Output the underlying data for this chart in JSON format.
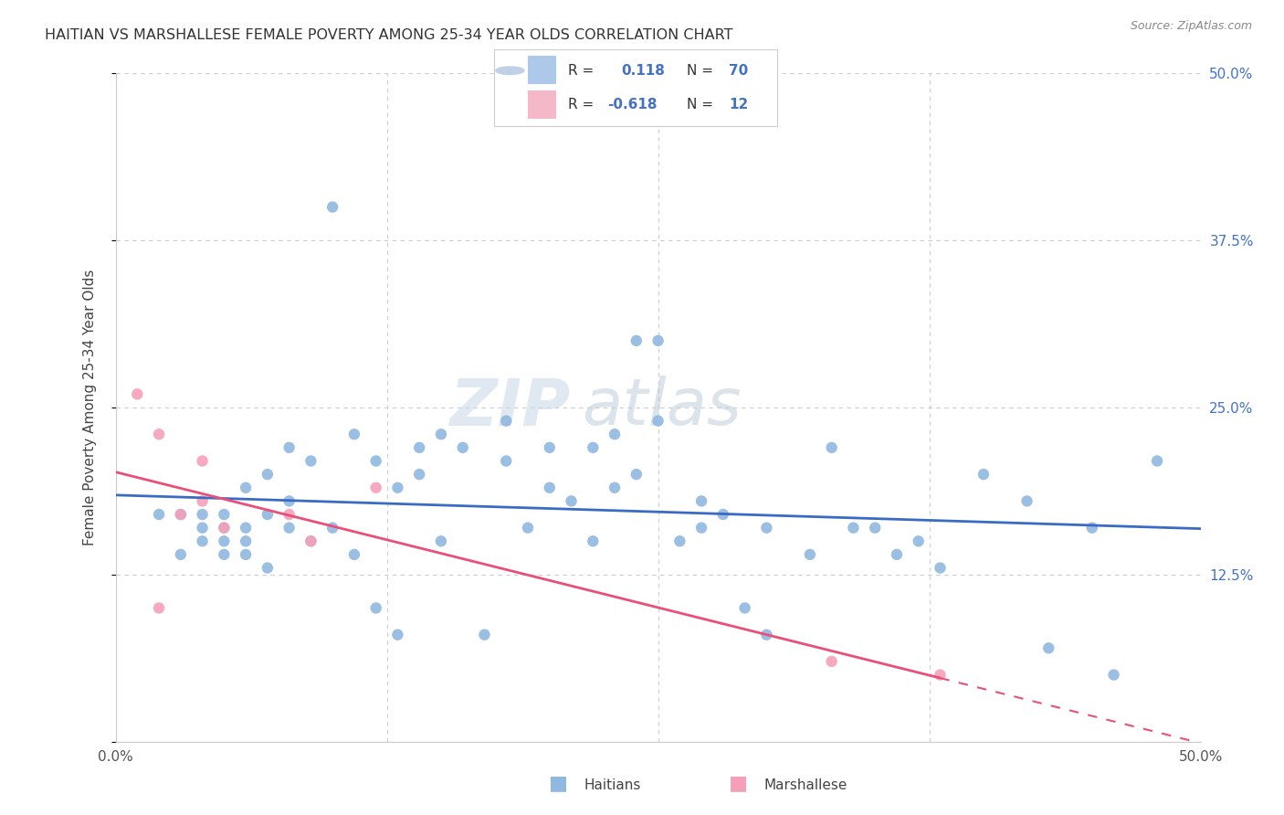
{
  "title": "HAITIAN VS MARSHALLESE FEMALE POVERTY AMONG 25-34 YEAR OLDS CORRELATION CHART",
  "source": "Source: ZipAtlas.com",
  "ylabel": "Female Poverty Among 25-34 Year Olds",
  "xlim": [
    0.0,
    0.5
  ],
  "ylim": [
    0.0,
    0.5
  ],
  "xticks": [
    0.0,
    0.125,
    0.25,
    0.375,
    0.5
  ],
  "yticks": [
    0.0,
    0.125,
    0.25,
    0.375,
    0.5
  ],
  "watermark_zip": "ZIP",
  "watermark_atlas": "atlas",
  "haitian_color": "#90b8e0",
  "marshallese_color": "#f5a0b8",
  "haitian_line_color": "#3a6bc4",
  "marshallese_line_color": "#e8507a",
  "background_color": "#ffffff",
  "haitian_x": [
    0.02,
    0.03,
    0.03,
    0.04,
    0.04,
    0.04,
    0.05,
    0.05,
    0.05,
    0.05,
    0.06,
    0.06,
    0.06,
    0.06,
    0.07,
    0.07,
    0.07,
    0.08,
    0.08,
    0.08,
    0.09,
    0.09,
    0.1,
    0.1,
    0.11,
    0.11,
    0.12,
    0.12,
    0.13,
    0.13,
    0.14,
    0.14,
    0.15,
    0.15,
    0.16,
    0.17,
    0.18,
    0.18,
    0.19,
    0.2,
    0.2,
    0.21,
    0.22,
    0.22,
    0.23,
    0.23,
    0.24,
    0.24,
    0.25,
    0.25,
    0.26,
    0.27,
    0.27,
    0.28,
    0.29,
    0.3,
    0.3,
    0.32,
    0.33,
    0.34,
    0.35,
    0.36,
    0.37,
    0.38,
    0.4,
    0.42,
    0.43,
    0.45,
    0.46,
    0.48
  ],
  "haitian_y": [
    0.17,
    0.14,
    0.17,
    0.15,
    0.16,
    0.17,
    0.14,
    0.15,
    0.16,
    0.17,
    0.14,
    0.15,
    0.16,
    0.19,
    0.13,
    0.17,
    0.2,
    0.16,
    0.18,
    0.22,
    0.15,
    0.21,
    0.4,
    0.16,
    0.14,
    0.23,
    0.1,
    0.21,
    0.08,
    0.19,
    0.22,
    0.2,
    0.15,
    0.23,
    0.22,
    0.08,
    0.21,
    0.24,
    0.16,
    0.19,
    0.22,
    0.18,
    0.22,
    0.15,
    0.19,
    0.23,
    0.2,
    0.3,
    0.24,
    0.3,
    0.15,
    0.18,
    0.16,
    0.17,
    0.1,
    0.16,
    0.08,
    0.14,
    0.22,
    0.16,
    0.16,
    0.14,
    0.15,
    0.13,
    0.2,
    0.18,
    0.07,
    0.16,
    0.05,
    0.21
  ],
  "marshallese_x": [
    0.01,
    0.02,
    0.02,
    0.03,
    0.04,
    0.04,
    0.05,
    0.08,
    0.09,
    0.12,
    0.33,
    0.38
  ],
  "marshallese_y": [
    0.26,
    0.23,
    0.1,
    0.17,
    0.18,
    0.21,
    0.16,
    0.17,
    0.15,
    0.19,
    0.06,
    0.05
  ]
}
